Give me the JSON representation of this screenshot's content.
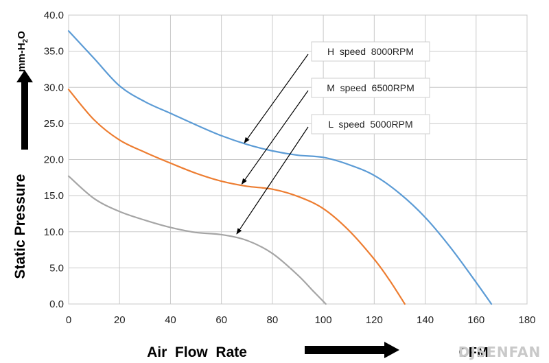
{
  "chart_data": {
    "type": "line",
    "xlabel": "Air  Flow  Rate",
    "ylabel": "Static  Pressure",
    "y_unit": "mm-H2O",
    "x_unit": "CFM",
    "xlim": [
      0,
      180
    ],
    "ylim": [
      0,
      40
    ],
    "x_ticks": [
      "0",
      "20",
      "40",
      "60",
      "80",
      "100",
      "120",
      "140",
      "160",
      "180"
    ],
    "y_ticks": [
      "0.0",
      "5.0",
      "10.0",
      "15.0",
      "20.0",
      "25.0",
      "30.0",
      "35.0",
      "40.0"
    ],
    "grid": true,
    "series": [
      {
        "name": "H  speed  8000RPM",
        "color": "#5B9BD5",
        "x": [
          0,
          10,
          20,
          30,
          40,
          50,
          60,
          70,
          80,
          90,
          100,
          110,
          120,
          130,
          140,
          150,
          160,
          166
        ],
        "y": [
          37.8,
          34.0,
          30.2,
          28.0,
          26.4,
          24.8,
          23.3,
          22.1,
          21.2,
          20.6,
          20.3,
          19.3,
          17.8,
          15.3,
          12.0,
          7.8,
          3.0,
          0
        ]
      },
      {
        "name": "M  speed  6500RPM",
        "color": "#ED7D31",
        "x": [
          0,
          10,
          20,
          30,
          40,
          50,
          60,
          70,
          80,
          90,
          100,
          110,
          120,
          126,
          132
        ],
        "y": [
          29.7,
          25.5,
          22.7,
          21.0,
          19.5,
          18.1,
          17.0,
          16.3,
          15.9,
          14.9,
          13.2,
          10.2,
          6.2,
          3.3,
          0
        ]
      },
      {
        "name": "L  speed  5000RPM",
        "color": "#A5A5A5",
        "x": [
          0,
          10,
          20,
          30,
          40,
          50,
          60,
          70,
          80,
          90,
          96,
          101
        ],
        "y": [
          17.7,
          14.6,
          12.8,
          11.6,
          10.6,
          9.9,
          9.6,
          8.8,
          7.0,
          4.0,
          1.8,
          0
        ]
      }
    ],
    "annotations": [
      {
        "text": "H  speed  8000RPM",
        "points_to": [
          69,
          22.3
        ]
      },
      {
        "text": "M  speed  6500RPM",
        "points_to": [
          68,
          16.6
        ]
      },
      {
        "text": "L  speed  5000RPM",
        "points_to": [
          66,
          9.7
        ]
      }
    ]
  },
  "watermark": "DJSENFAN"
}
